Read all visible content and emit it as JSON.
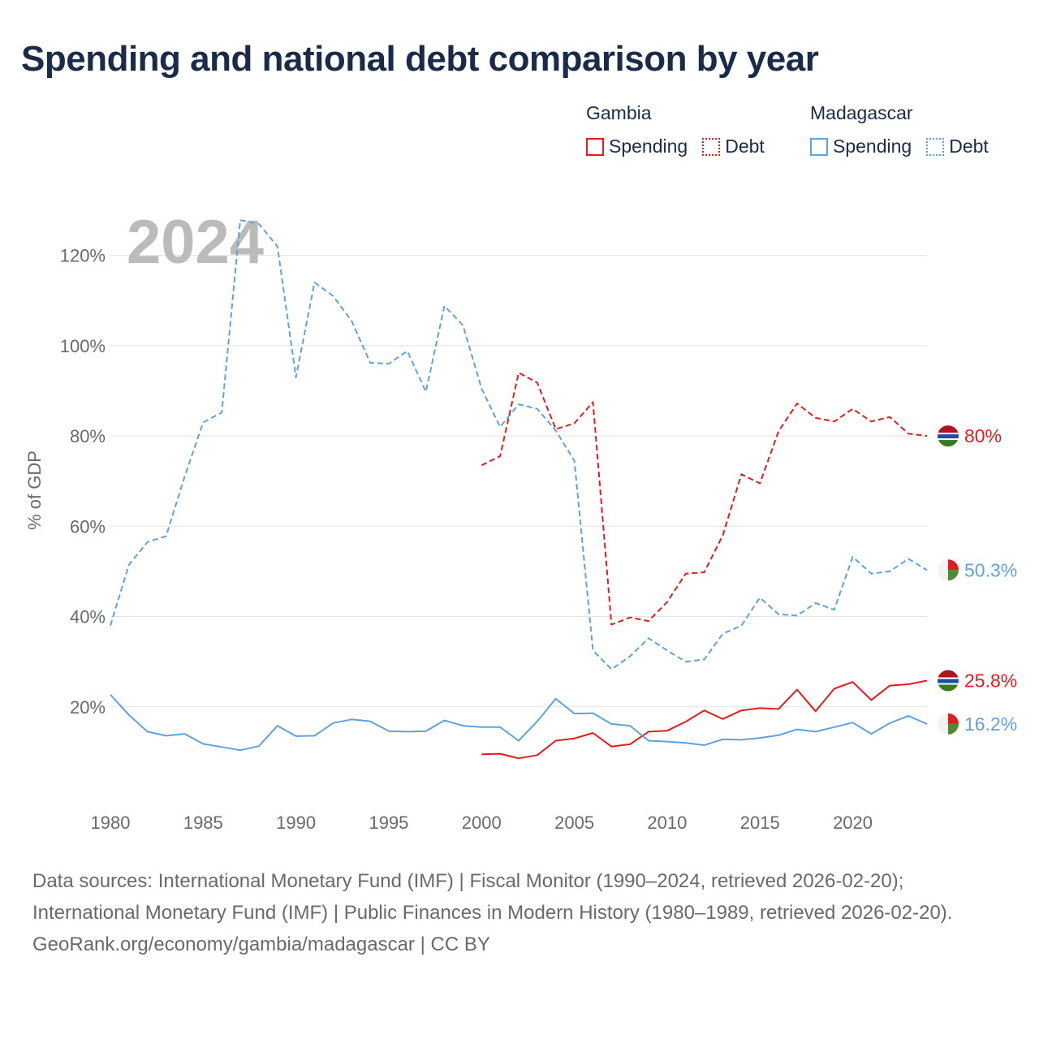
{
  "title": "Spending and national debt comparison by year",
  "legend": {
    "groups": [
      {
        "name": "Gambia",
        "color": "#e41a1c",
        "items": [
          {
            "label": "Spending",
            "style": "solid"
          },
          {
            "label": "Debt",
            "style": "dotted"
          }
        ]
      },
      {
        "name": "Madagascar",
        "color": "#5fa2dd",
        "items": [
          {
            "label": "Spending",
            "style": "solid"
          },
          {
            "label": "Debt",
            "style": "dotted"
          }
        ]
      }
    ]
  },
  "chart_data": {
    "type": "line",
    "year_label": "2024",
    "ylabel": "% of GDP",
    "xlim": [
      1980,
      2024
    ],
    "ylim": [
      0,
      130
    ],
    "x_ticks": [
      1980,
      1985,
      1990,
      1995,
      2000,
      2005,
      2010,
      2015,
      2020
    ],
    "x_tick_labels": [
      "1980",
      "1985",
      "1990",
      "1995",
      "2000",
      "2005",
      "2010",
      "2015",
      "2020"
    ],
    "y_ticks": [
      20,
      40,
      60,
      80,
      100,
      120
    ],
    "y_tick_labels": [
      "20%",
      "40%",
      "60%",
      "80%",
      "100%",
      "120%"
    ],
    "series": [
      {
        "name": "Madagascar Debt",
        "country": "Madagascar",
        "kind": "debt",
        "color": "#5fa2dd",
        "dash": "dashed",
        "end_label": "50.3%",
        "points": [
          [
            1980,
            38
          ],
          [
            1981,
            51.5
          ],
          [
            1982,
            56.5
          ],
          [
            1983,
            57.8
          ],
          [
            1984,
            71
          ],
          [
            1985,
            83
          ],
          [
            1986,
            85.2
          ],
          [
            1987,
            127.8
          ],
          [
            1988,
            127
          ],
          [
            1989,
            122
          ],
          [
            1990,
            93
          ],
          [
            1991,
            114
          ],
          [
            1992,
            111
          ],
          [
            1993,
            105.5
          ],
          [
            1994,
            96.2
          ],
          [
            1995,
            96
          ],
          [
            1996,
            98.8
          ],
          [
            1997,
            89.8
          ],
          [
            1998,
            108.8
          ],
          [
            1999,
            104.5
          ],
          [
            2000,
            90.5
          ],
          [
            2001,
            82
          ],
          [
            2002,
            87
          ],
          [
            2003,
            86
          ],
          [
            2004,
            81.2
          ],
          [
            2005,
            74.5
          ],
          [
            2006,
            32.5
          ],
          [
            2007,
            28.3
          ],
          [
            2008,
            31.2
          ],
          [
            2009,
            35.2
          ],
          [
            2010,
            32.5
          ],
          [
            2011,
            30
          ],
          [
            2012,
            30.5
          ],
          [
            2013,
            36.2
          ],
          [
            2014,
            38
          ],
          [
            2015,
            44.2
          ],
          [
            2016,
            40.5
          ],
          [
            2017,
            40.2
          ],
          [
            2018,
            43
          ],
          [
            2019,
            41.5
          ],
          [
            2020,
            53.2
          ],
          [
            2021,
            49.5
          ],
          [
            2022,
            50
          ],
          [
            2023,
            52.8
          ],
          [
            2024,
            50.3
          ]
        ]
      },
      {
        "name": "Gambia Debt",
        "country": "Gambia",
        "kind": "debt",
        "color": "#e41a1c",
        "dash": "dashed",
        "end_label": "80%",
        "points": [
          [
            2000,
            73.5
          ],
          [
            2001,
            75.5
          ],
          [
            2002,
            94
          ],
          [
            2003,
            91.8
          ],
          [
            2004,
            81.5
          ],
          [
            2005,
            82.8
          ],
          [
            2006,
            87.5
          ],
          [
            2007,
            38.2
          ],
          [
            2008,
            39.8
          ],
          [
            2009,
            39
          ],
          [
            2010,
            43.2
          ],
          [
            2011,
            49.5
          ],
          [
            2012,
            49.8
          ],
          [
            2013,
            58
          ],
          [
            2014,
            71.5
          ],
          [
            2015,
            69.5
          ],
          [
            2016,
            81
          ],
          [
            2017,
            87.2
          ],
          [
            2018,
            84
          ],
          [
            2019,
            83.2
          ],
          [
            2020,
            86
          ],
          [
            2021,
            83.2
          ],
          [
            2022,
            84.2
          ],
          [
            2023,
            80.5
          ],
          [
            2024,
            80
          ]
        ]
      },
      {
        "name": "Gambia Spending",
        "country": "Gambia",
        "kind": "spending",
        "color": "#e41a1c",
        "dash": "solid",
        "end_label": "25.8%",
        "points": [
          [
            2000,
            9.5
          ],
          [
            2001,
            9.6
          ],
          [
            2002,
            8.6
          ],
          [
            2003,
            9.3
          ],
          [
            2004,
            12.5
          ],
          [
            2005,
            13
          ],
          [
            2006,
            14.2
          ],
          [
            2007,
            11.2
          ],
          [
            2008,
            11.7
          ],
          [
            2009,
            14.5
          ],
          [
            2010,
            14.7
          ],
          [
            2011,
            16.7
          ],
          [
            2012,
            19.2
          ],
          [
            2013,
            17.3
          ],
          [
            2014,
            19.2
          ],
          [
            2015,
            19.7
          ],
          [
            2016,
            19.5
          ],
          [
            2017,
            23.8
          ],
          [
            2018,
            19
          ],
          [
            2019,
            24
          ],
          [
            2020,
            25.5
          ],
          [
            2021,
            21.5
          ],
          [
            2022,
            24.7
          ],
          [
            2023,
            25
          ],
          [
            2024,
            25.8
          ]
        ]
      },
      {
        "name": "Madagascar Spending",
        "country": "Madagascar",
        "kind": "spending",
        "color": "#5fa2dd",
        "dash": "solid",
        "end_label": "16.2%",
        "points": [
          [
            1980,
            22.7
          ],
          [
            1981,
            18.2
          ],
          [
            1982,
            14.5
          ],
          [
            1983,
            13.6
          ],
          [
            1984,
            14
          ],
          [
            1985,
            11.8
          ],
          [
            1986,
            11.1
          ],
          [
            1987,
            10.4
          ],
          [
            1988,
            11.3
          ],
          [
            1989,
            15.8
          ],
          [
            1990,
            13.5
          ],
          [
            1991,
            13.6
          ],
          [
            1992,
            16.4
          ],
          [
            1993,
            17.2
          ],
          [
            1994,
            16.8
          ],
          [
            1995,
            14.6
          ],
          [
            1996,
            14.5
          ],
          [
            1997,
            14.6
          ],
          [
            1998,
            17
          ],
          [
            1999,
            15.8
          ],
          [
            2000,
            15.5
          ],
          [
            2001,
            15.5
          ],
          [
            2002,
            12.5
          ],
          [
            2003,
            16.8
          ],
          [
            2004,
            21.8
          ],
          [
            2005,
            18.5
          ],
          [
            2006,
            18.6
          ],
          [
            2007,
            16.2
          ],
          [
            2008,
            15.8
          ],
          [
            2009,
            12.5
          ],
          [
            2010,
            12.3
          ],
          [
            2011,
            12
          ],
          [
            2012,
            11.5
          ],
          [
            2013,
            12.8
          ],
          [
            2014,
            12.7
          ],
          [
            2015,
            13.1
          ],
          [
            2016,
            13.7
          ],
          [
            2017,
            15
          ],
          [
            2018,
            14.5
          ],
          [
            2019,
            15.5
          ],
          [
            2020,
            16.5
          ],
          [
            2021,
            14
          ],
          [
            2022,
            16.4
          ],
          [
            2023,
            18
          ],
          [
            2024,
            16.2
          ]
        ]
      }
    ]
  },
  "footer": {
    "sources": "Data sources: International Monetary Fund (IMF) | Fiscal Monitor (1990–2024, retrieved 2026-02-20); International Monetary Fund (IMF) | Public Finances in Modern History (1980–1989, retrieved 2026-02-20).",
    "credit": "GeoRank.org/economy/gambia/madagascar | CC BY"
  }
}
